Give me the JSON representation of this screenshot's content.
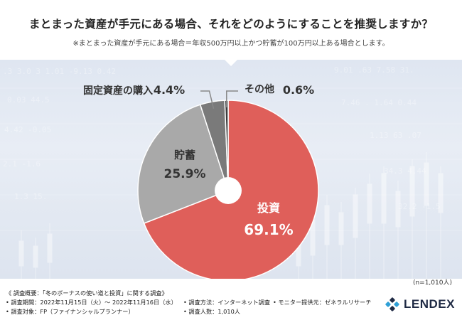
{
  "header": {
    "title": "まとまった資産が手元にある場合、それをどのようにすることを推奨しますか？",
    "note": "※まとまった資産が手元にある場合＝年収500万円以上かつ貯蓄が100万円以上ある場合とします。"
  },
  "chart_data": {
    "type": "pie",
    "style": "donut",
    "title": "まとまった資産が手元にある場合、それをどのようにすることを推奨しますか？",
    "slices": [
      {
        "label": "投資",
        "value": 69.1,
        "display": "69.1%",
        "color": "#df5f5a",
        "label_color": "#ffffff"
      },
      {
        "label": "貯蓄",
        "value": 25.9,
        "display": "25.9%",
        "color": "#a9a9a9",
        "label_color": "#333333"
      },
      {
        "label": "固定資産の購入",
        "value": 4.4,
        "display": "4.4%",
        "color": "#7a7a7a",
        "label_color": "#333333"
      },
      {
        "label": "その他",
        "value": 0.6,
        "display": "0.6%",
        "color": "#3c3c3c",
        "label_color": "#333333"
      }
    ],
    "sample": "(n=1,010人)"
  },
  "footer": {
    "survey_title": "《 調査概要：「冬のボーナスの使い道と投資」に関する調査》",
    "period": "• 調査期間：2022年11月15日（火）～ 2022年11月16日（水）",
    "method": "• 調査方法：インターネット調査",
    "provider": "• モニター提供元：ゼネラルリサーチ",
    "target": "• 調査対象：FP（ファイナンシャルプランナー）",
    "count": "• 調査人数：1,010人"
  },
  "logo": {
    "text": "LENDEX",
    "icon": "lendex-logo-icon",
    "color": "#1f2a44",
    "accent": "#2e9fd6"
  }
}
